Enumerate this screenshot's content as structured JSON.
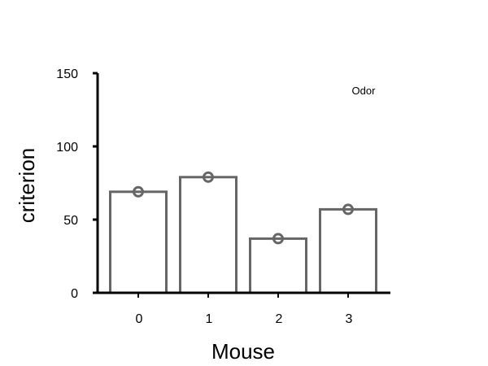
{
  "chart_data": {
    "type": "bar",
    "categories": [
      "0",
      "1",
      "2",
      "3"
    ],
    "values": [
      69,
      79,
      37,
      57
    ],
    "points": [
      69,
      79,
      37,
      57
    ],
    "xlabel": "Mouse",
    "ylabel": "criterion",
    "ylim": [
      0,
      150
    ],
    "yticks": [
      0,
      50,
      100,
      150
    ],
    "annotation": "Odor",
    "grid": false,
    "colors": {
      "bar_edge": "#666666",
      "bar_fill": "#ffffff",
      "axis": "#000000"
    }
  }
}
